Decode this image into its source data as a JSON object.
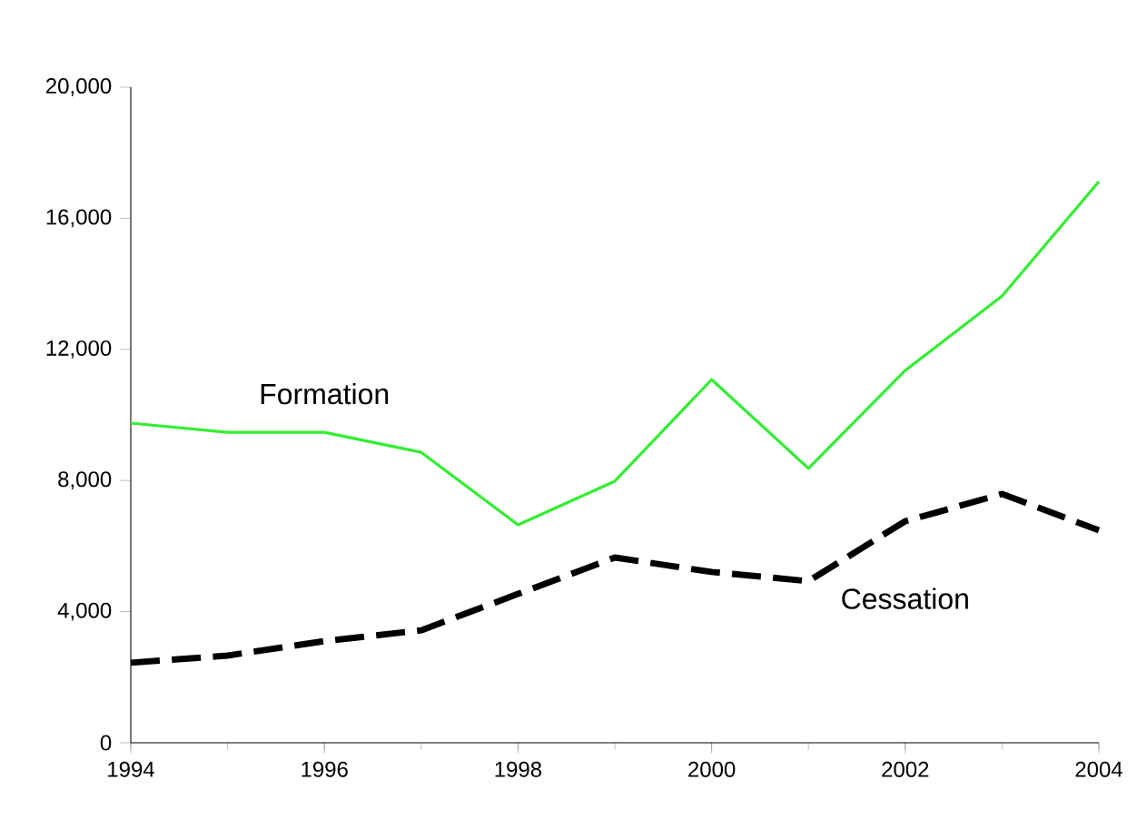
{
  "chart_data": {
    "type": "line",
    "x": [
      1994,
      1995,
      1996,
      1997,
      1998,
      1999,
      2000,
      2001,
      2002,
      2003,
      2004
    ],
    "series": [
      {
        "name": "Formation",
        "color": "#33ee33",
        "line_style": "solid",
        "values": [
          9750,
          9470,
          9470,
          8860,
          6650,
          7980,
          11080,
          8370,
          11360,
          13630,
          17120
        ]
      },
      {
        "name": "Cessation",
        "color": "#000000",
        "line_style": "dashed",
        "values": [
          2440,
          2660,
          3100,
          3430,
          4540,
          5650,
          5210,
          4930,
          6760,
          7590,
          6480
        ]
      }
    ],
    "xlim": [
      1994,
      2004
    ],
    "xticks": [
      1994,
      1996,
      1998,
      2000,
      2002,
      2004
    ],
    "ylim": [
      0,
      20000
    ],
    "yticks": [
      0,
      {
        "value": 4000,
        "label": "4,000"
      },
      {
        "value": 8000,
        "label": "8,000"
      },
      {
        "value": 12000,
        "label": "12,000"
      },
      {
        "value": 16000,
        "label": "16,000"
      },
      {
        "value": 20000,
        "label": "20,000"
      }
    ],
    "grid": false,
    "legend": false,
    "marker": "none"
  }
}
